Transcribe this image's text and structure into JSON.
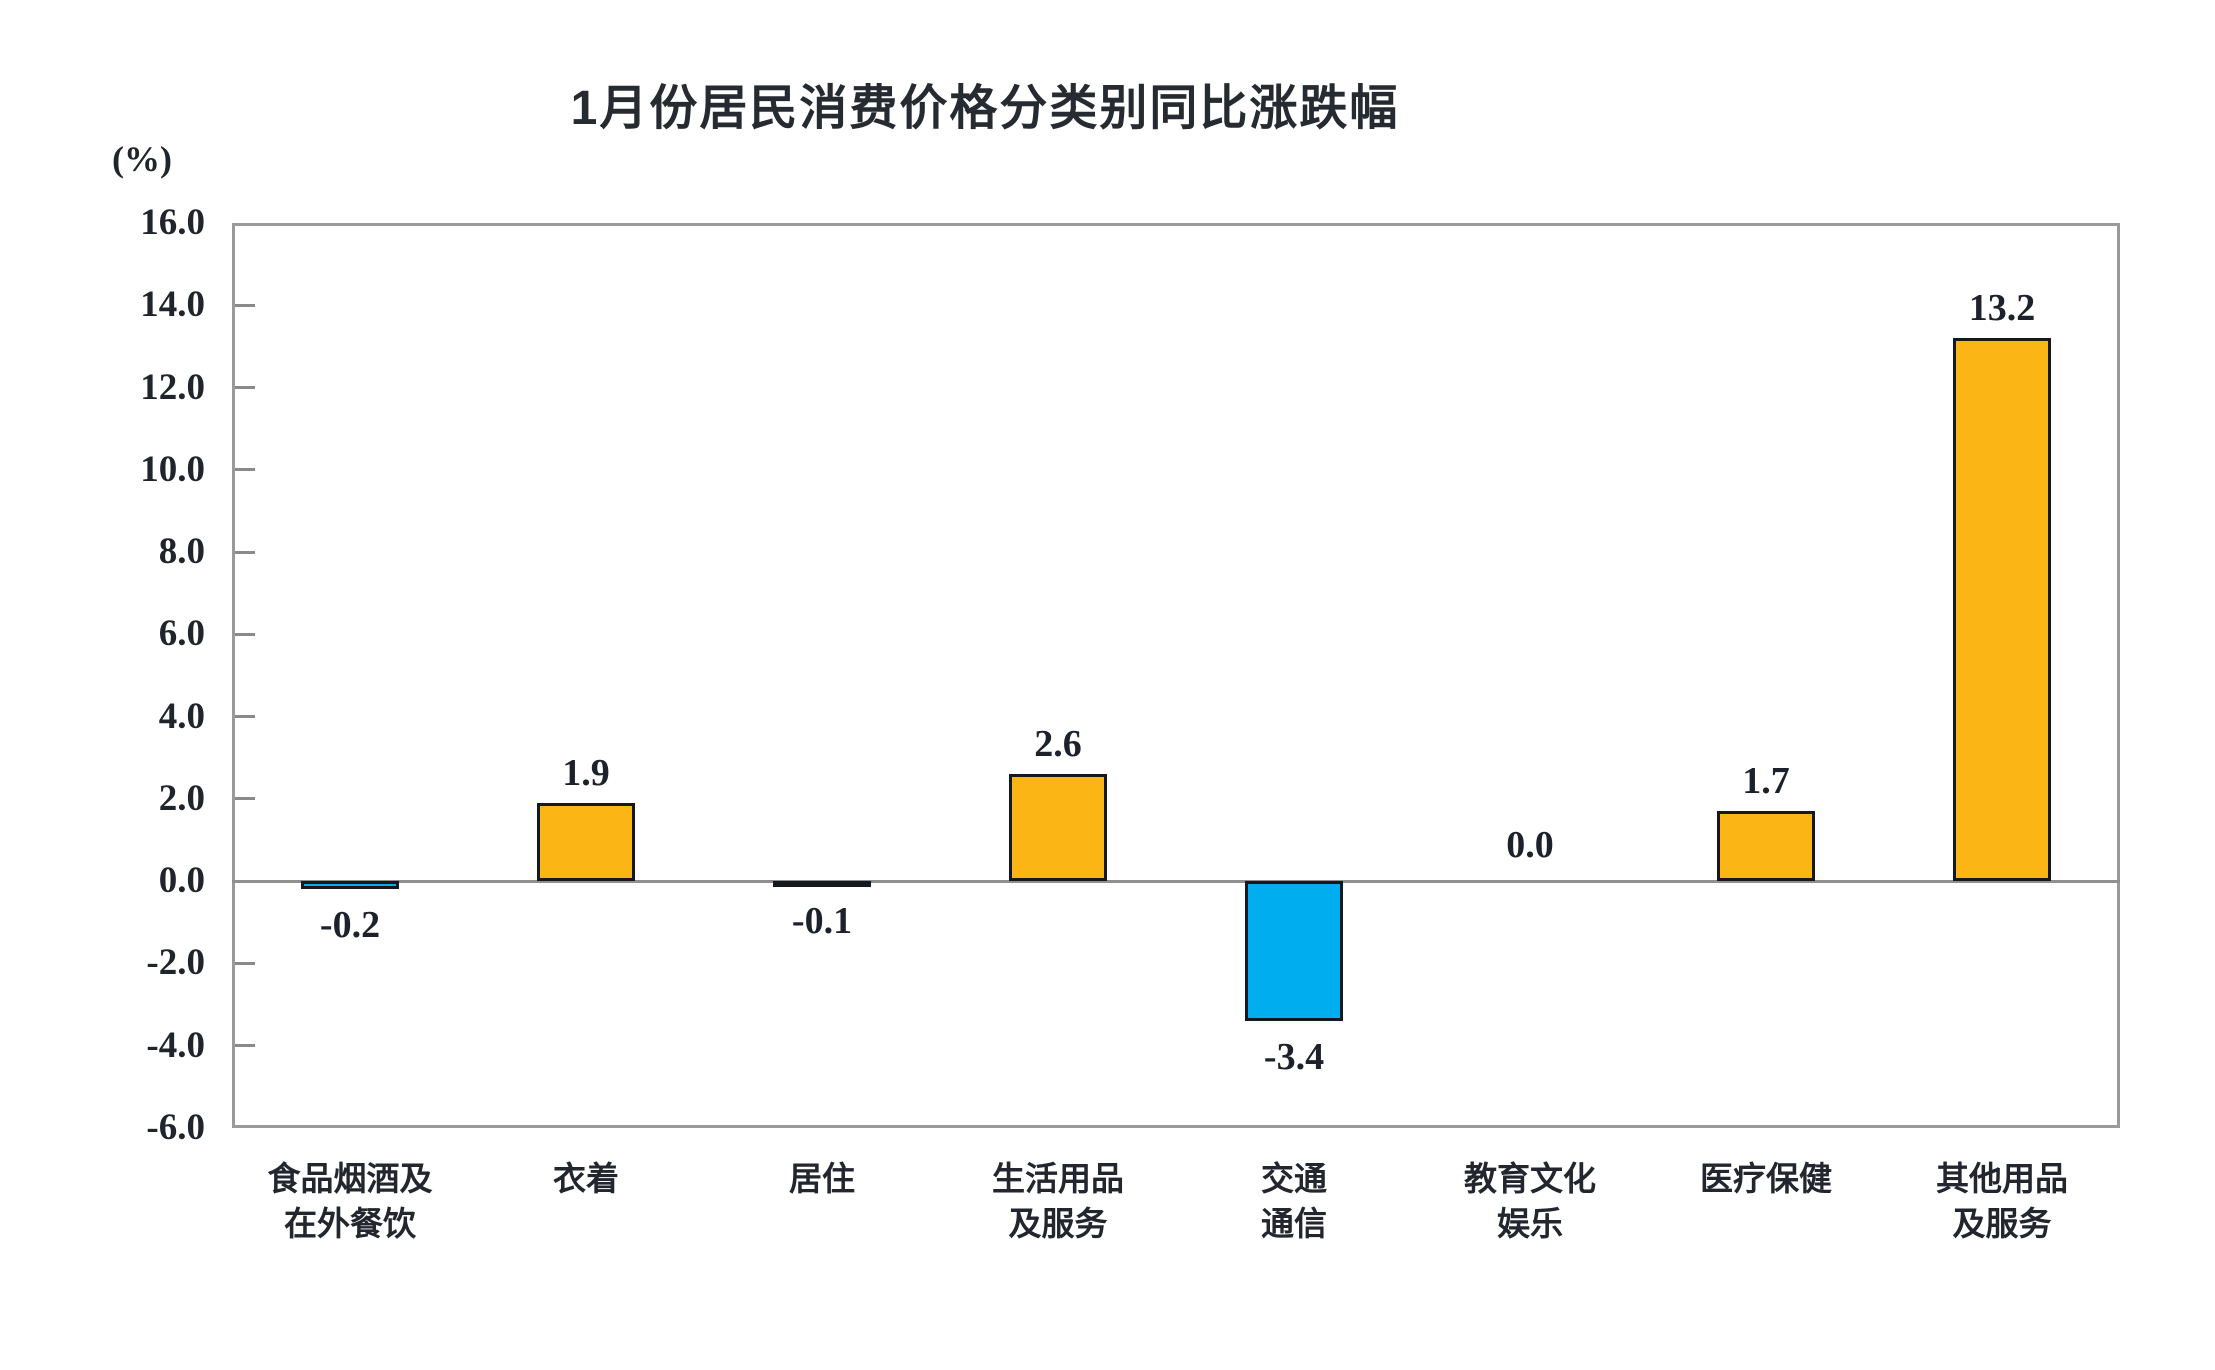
{
  "chart_data": {
    "type": "bar",
    "title": "1月份居民消费价格分类别同比涨跌幅",
    "unit_label": "(%)",
    "categories": [
      "食品烟酒及\n在外餐饮",
      "衣着",
      "居住",
      "生活用品\n及服务",
      "交通\n通信",
      "教育文化\n娱乐",
      "医疗保健",
      "其他用品\n及服务"
    ],
    "values": [
      -0.2,
      1.9,
      -0.1,
      2.6,
      -3.4,
      0.0,
      1.7,
      13.2
    ],
    "value_labels": [
      "-0.2",
      "1.9",
      "-0.1",
      "2.6",
      "-3.4",
      "0.0",
      "1.7",
      "13.2"
    ],
    "ylim": [
      -6.0,
      16.0
    ],
    "ytick_step": 2.0,
    "ytick_labels": [
      "16.0",
      "14.0",
      "12.0",
      "10.0",
      "8.0",
      "6.0",
      "4.0",
      "2.0",
      "0.0",
      "-2.0",
      "-4.0",
      "-6.0"
    ],
    "xlabel": "",
    "ylabel": "(%)",
    "grid": false,
    "legend_position": "none",
    "colors": {
      "positive_bar": "#FBB615",
      "negative_bar": "#00AEEF",
      "bar_outline": "#15181c",
      "plot_border": "#9a9a9a",
      "zero_line": "#8f8f8f",
      "text": "#20242c"
    }
  }
}
